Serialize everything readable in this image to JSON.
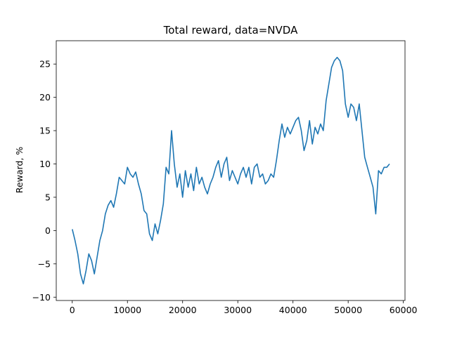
{
  "chart_data": {
    "type": "line",
    "title": "Total reward, data=NVDA",
    "xlabel": "",
    "ylabel": "Reward, %",
    "xlim": [
      -2900,
      60300
    ],
    "ylim": [
      -10.5,
      28.5
    ],
    "xticks": [
      0,
      10000,
      20000,
      30000,
      40000,
      50000,
      60000
    ],
    "xtick_labels": [
      "0",
      "10000",
      "20000",
      "30000",
      "40000",
      "50000",
      "60000"
    ],
    "yticks": [
      -10,
      -5,
      0,
      5,
      10,
      15,
      20,
      25
    ],
    "ytick_labels": [
      "−10",
      "−5",
      "0",
      "5",
      "10",
      "15",
      "20",
      "25"
    ],
    "grid": false,
    "legend": "none",
    "series": [
      {
        "color": "#1f77b4",
        "x": [
          0,
          500,
          1000,
          1500,
          2000,
          2500,
          3000,
          3500,
          4000,
          4500,
          5000,
          5500,
          6000,
          6500,
          7000,
          7500,
          8000,
          8500,
          9000,
          9500,
          10000,
          10500,
          11000,
          11500,
          12000,
          12500,
          13000,
          13500,
          14000,
          14500,
          15000,
          15500,
          16000,
          16500,
          17000,
          17500,
          18000,
          18500,
          19000,
          19500,
          20000,
          20500,
          21000,
          21500,
          22000,
          22500,
          23000,
          23500,
          24000,
          24500,
          25000,
          25500,
          26000,
          26500,
          27000,
          27500,
          28000,
          28500,
          29000,
          29500,
          30000,
          30500,
          31000,
          31500,
          32000,
          32500,
          33000,
          33500,
          34000,
          34500,
          35000,
          35500,
          36000,
          36500,
          37000,
          37500,
          38000,
          38500,
          39000,
          39500,
          40000,
          40500,
          41000,
          41500,
          42000,
          42500,
          43000,
          43500,
          44000,
          44500,
          45000,
          45500,
          46000,
          46500,
          47000,
          47500,
          48000,
          48500,
          49000,
          49500,
          50000,
          50500,
          51000,
          51500,
          52000,
          52500,
          53000,
          53500,
          54000,
          54500,
          55000,
          55500,
          56000,
          56500,
          57000,
          57500
        ],
        "y": [
          0.2,
          -1.5,
          -3.5,
          -6.5,
          -8.0,
          -6.0,
          -3.5,
          -4.5,
          -6.5,
          -4.0,
          -1.5,
          0.0,
          2.5,
          3.8,
          4.5,
          3.5,
          5.5,
          8.0,
          7.5,
          7.0,
          9.5,
          8.5,
          8.0,
          8.8,
          7.0,
          5.5,
          3.0,
          2.5,
          -0.5,
          -1.5,
          1.0,
          -0.5,
          1.5,
          4.0,
          9.5,
          8.5,
          15.0,
          10.0,
          6.5,
          8.5,
          5.0,
          9.0,
          6.5,
          8.5,
          6.0,
          9.5,
          7.0,
          8.0,
          6.5,
          5.5,
          7.0,
          8.0,
          9.5,
          10.5,
          8.0,
          10.0,
          11.0,
          7.5,
          9.0,
          8.0,
          7.0,
          8.5,
          9.5,
          8.0,
          9.5,
          7.0,
          9.5,
          10.0,
          8.0,
          8.5,
          7.0,
          7.5,
          8.5,
          8.0,
          10.5,
          13.5,
          16.0,
          14.0,
          15.5,
          14.5,
          15.5,
          16.5,
          17.0,
          15.0,
          12.0,
          13.5,
          16.5,
          13.0,
          15.5,
          14.5,
          16.0,
          15.0,
          19.5,
          22.0,
          24.5,
          25.5,
          26.0,
          25.5,
          24.0,
          19.0,
          17.0,
          19.0,
          18.5,
          16.5,
          19.0,
          15.0,
          11.0,
          9.5,
          8.0,
          6.5,
          2.5,
          9.0,
          8.5,
          9.5,
          9.5,
          10.0
        ]
      }
    ]
  }
}
